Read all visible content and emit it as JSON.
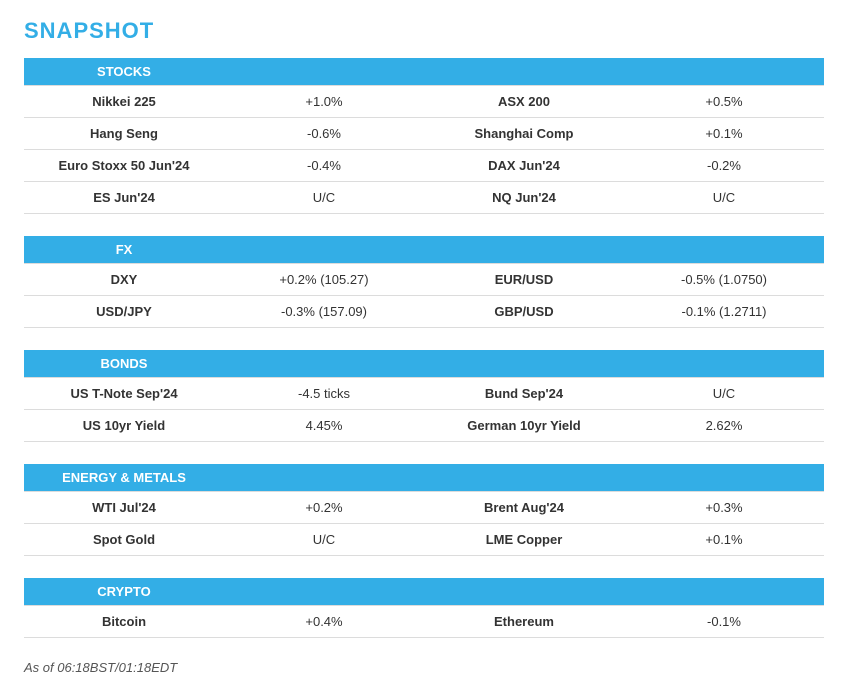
{
  "title": "SNAPSHOT",
  "colors": {
    "header_bg": "#33aee6",
    "header_text": "#ffffff",
    "row_border": "#dcdcdc",
    "title_color": "#33aee6",
    "body_text": "#333333"
  },
  "layout": {
    "col_widths_pct": [
      25,
      25,
      25,
      25
    ],
    "font_family": "Arial",
    "title_fontsize_pt": 16,
    "header_fontsize_pt": 10,
    "cell_fontsize_pt": 10
  },
  "sections": [
    {
      "heading": "STOCKS",
      "rows": [
        {
          "l1": "Nikkei 225",
          "v1": "+1.0%",
          "l2": "ASX 200",
          "v2": "+0.5%"
        },
        {
          "l1": "Hang Seng",
          "v1": "-0.6%",
          "l2": "Shanghai Comp",
          "v2": "+0.1%"
        },
        {
          "l1": "Euro Stoxx 50 Jun'24",
          "v1": "-0.4%",
          "l2": "DAX Jun'24",
          "v2": "-0.2%"
        },
        {
          "l1": "ES Jun'24",
          "v1": "U/C",
          "l2": "NQ Jun'24",
          "v2": "U/C"
        }
      ]
    },
    {
      "heading": "FX",
      "rows": [
        {
          "l1": "DXY",
          "v1": "+0.2% (105.27)",
          "l2": "EUR/USD",
          "v2": "-0.5% (1.0750)"
        },
        {
          "l1": "USD/JPY",
          "v1": "-0.3% (157.09)",
          "l2": "GBP/USD",
          "v2": "-0.1% (1.2711)"
        }
      ]
    },
    {
      "heading": "BONDS",
      "rows": [
        {
          "l1": "US T-Note Sep'24",
          "v1": "-4.5 ticks",
          "l2": "Bund Sep'24",
          "v2": "U/C"
        },
        {
          "l1": "US 10yr Yield",
          "v1": "4.45%",
          "l2": "German 10yr Yield",
          "v2": "2.62%"
        }
      ]
    },
    {
      "heading": "ENERGY & METALS",
      "rows": [
        {
          "l1": "WTI Jul'24",
          "v1": "+0.2%",
          "l2": "Brent Aug'24",
          "v2": "+0.3%"
        },
        {
          "l1": "Spot Gold",
          "v1": "U/C",
          "l2": "LME Copper",
          "v2": "+0.1%"
        }
      ]
    },
    {
      "heading": "CRYPTO",
      "rows": [
        {
          "l1": "Bitcoin",
          "v1": "+0.4%",
          "l2": "Ethereum",
          "v2": "-0.1%"
        }
      ]
    }
  ],
  "timestamp": "As of 06:18BST/01:18EDT"
}
